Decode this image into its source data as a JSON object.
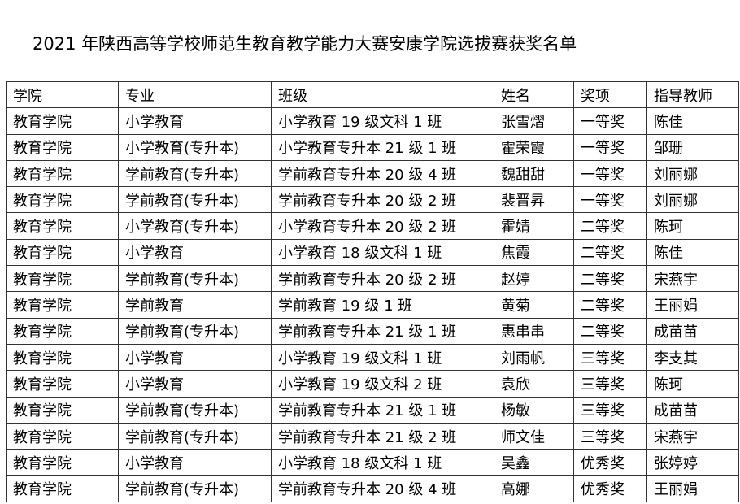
{
  "title": "2021 年陕西高等学校师范生教育教学能力大赛安康学院选拔赛获奖名单",
  "headers": [
    "学院",
    "专业",
    "班级",
    "姓名",
    "奖项",
    "指导教师"
  ],
  "rows": [
    [
      "教育学院",
      "小学教育",
      "小学教育 19 级文科 1 班",
      "张雪熠",
      "一等奖",
      "陈佳"
    ],
    [
      "教育学院",
      "小学教育(专升本)",
      "小学教育专升本 21 级 1 班",
      "霍荣霞",
      "一等奖",
      "邹珊"
    ],
    [
      "教育学院",
      "学前教育(专升本)",
      "学前教育专升本 20 级 4 班",
      "魏甜甜",
      "一等奖",
      "刘丽娜"
    ],
    [
      "教育学院",
      "学前教育(专升本)",
      "学前教育专升本 20 级 2 班",
      "裴晋昇",
      "一等奖",
      "刘丽娜"
    ],
    [
      "教育学院",
      "小学教育(专升本)",
      "小学教育专升本 20 级 2 班",
      "霍婧",
      "二等奖",
      "陈珂"
    ],
    [
      "教育学院",
      "小学教育",
      "小学教育 18 级文科 1 班",
      "焦霞",
      "二等奖",
      "陈佳"
    ],
    [
      "教育学院",
      "学前教育(专升本)",
      "学前教育专升本 20 级 2 班",
      "赵婷",
      "二等奖",
      "宋燕宇"
    ],
    [
      "教育学院",
      "学前教育",
      "学前教育 19 级 1 班",
      "黄菊",
      "二等奖",
      "王丽娟"
    ],
    [
      "教育学院",
      "学前教育(专升本)",
      "学前教育专升本 21 级 1 班",
      "惠串串",
      "二等奖",
      "成苗苗"
    ],
    [
      "教育学院",
      "小学教育",
      "小学教育 19 级文科 1 班",
      "刘雨帆",
      "三等奖",
      "李支其"
    ],
    [
      "教育学院",
      "小学教育",
      "小学教育 19 级文科 2 班",
      "袁欣",
      "三等奖",
      "陈珂"
    ],
    [
      "教育学院",
      "学前教育(专升本)",
      "学前教育专升本 21 级 1 班",
      "杨敏",
      "三等奖",
      "成苗苗"
    ],
    [
      "教育学院",
      "学前教育(专升本)",
      "学前教育专升本 21 级 2 班",
      "师文佳",
      "三等奖",
      "宋燕宇"
    ],
    [
      "教育学院",
      "小学教育",
      "小学教育 18 级文科 1 班",
      "吴鑫",
      "优秀奖",
      "张婷婷"
    ],
    [
      "教育学院",
      "学前教育(专升本)",
      "学前教育专升本 20 级 4 班",
      "高娜",
      "优秀奖",
      "王丽娟"
    ]
  ]
}
